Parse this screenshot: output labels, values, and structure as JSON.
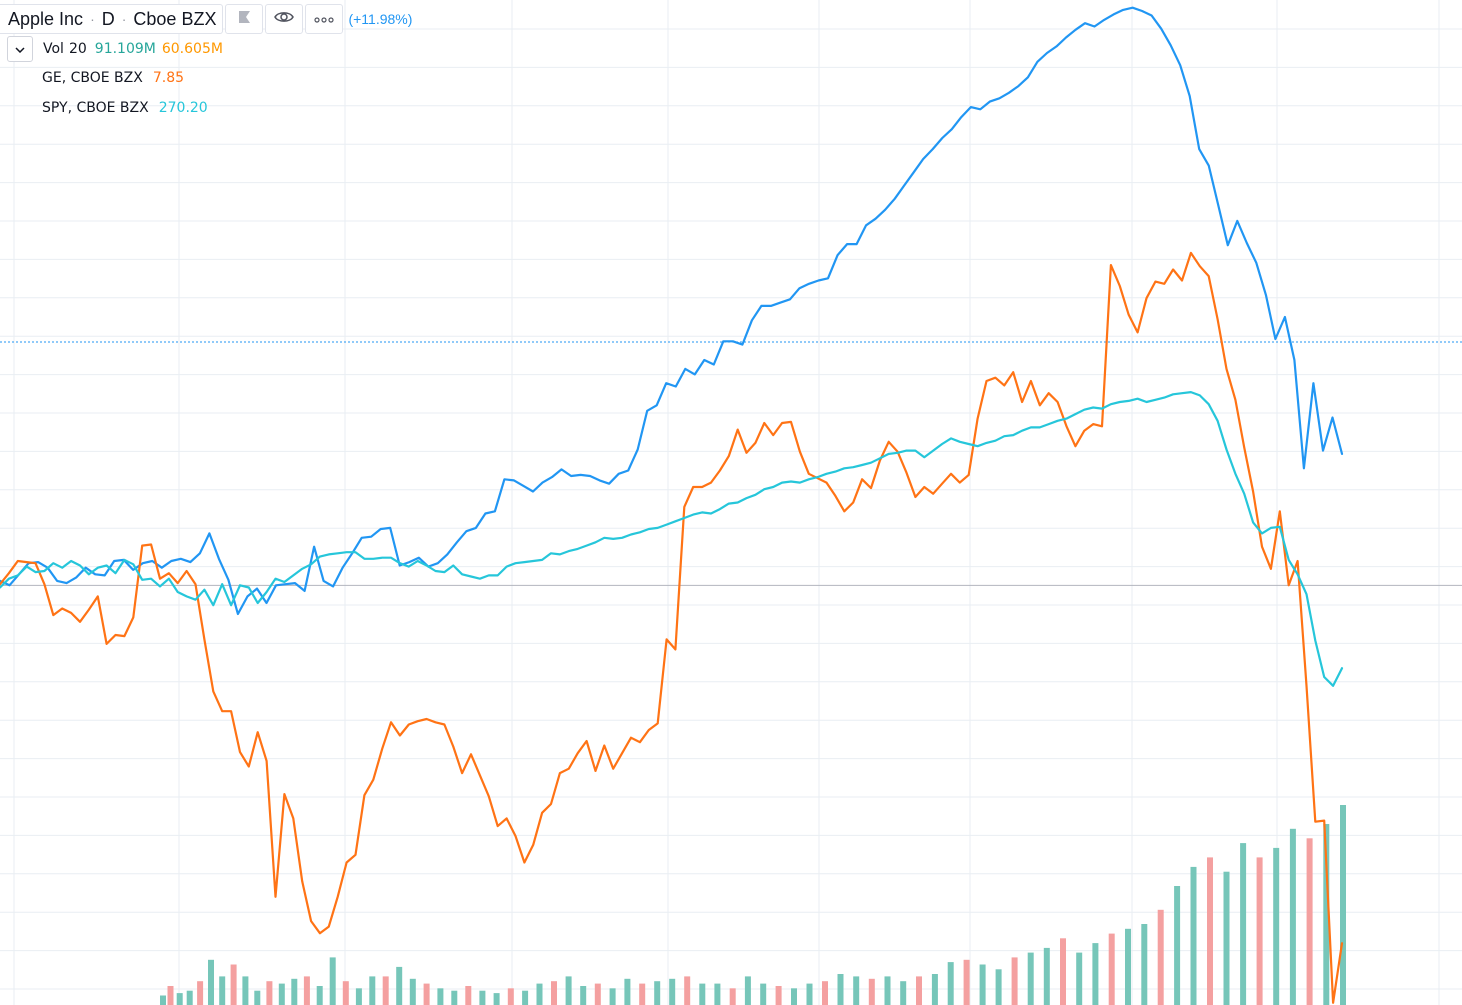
{
  "header": {
    "symbol": "Apple Inc",
    "interval": "D",
    "exchange": "Cboe BZX",
    "change": "(+11.98%)",
    "flag_icon": "flag-icon",
    "eye_icon": "eye-icon",
    "more_icon": "more-dots-icon"
  },
  "studies": {
    "volume": {
      "name": "Vol",
      "length": "20",
      "value1": "91.109M",
      "value2": "60.605M"
    },
    "compare": [
      {
        "name": "GE, CBOE BZX",
        "value": "7.85"
      },
      {
        "name": "SPY, CBOE BZX",
        "value": "270.20"
      }
    ]
  },
  "colors": {
    "aapl": "#2196f3",
    "ge": "#ff7315",
    "spy": "#26c6da",
    "vol_up": "#76c6b9",
    "vol_down": "#f4a0a0",
    "grid": "#e9eef3",
    "baseline": "#b2b5be",
    "price_line": "#2196f3",
    "vol_value1": "#26a69a",
    "vol_value2": "#ff9800",
    "ge_value": "#ff7315",
    "spy_value": "#26c6da"
  },
  "chart_data": {
    "type": "line",
    "y_unit": "percent change vs. start",
    "percent_range": [
      -38,
      53
    ],
    "baseline": 0,
    "current_change_percent": 11.98,
    "series": [
      {
        "name": "Apple Inc",
        "values": [
          0.4,
          0.0,
          1.0,
          2.0,
          2.1,
          1.6,
          0.4,
          0.2,
          0.7,
          1.6,
          1.0,
          0.9,
          2.2,
          2.3,
          1.4,
          2.0,
          2.2,
          1.6,
          2.2,
          2.4,
          2.1,
          2.9,
          4.7,
          2.4,
          0.5,
          -2.6,
          -1.0,
          -0.3,
          -1.6,
          0.0,
          0.1,
          0.2,
          -0.5,
          3.5,
          0.4,
          -0.1,
          1.6,
          2.9,
          4.3,
          4.4,
          5.1,
          5.2,
          1.8,
          2.1,
          2.5,
          1.7,
          2.0,
          2.8,
          3.9,
          4.9,
          5.2,
          6.5,
          6.7,
          9.6,
          9.5,
          9.0,
          8.5,
          9.3,
          9.8,
          10.5,
          9.9,
          10.0,
          9.9,
          9.5,
          9.2,
          10.1,
          10.4,
          12.3,
          15.8,
          16.3,
          18.3,
          18.0,
          19.6,
          19.1,
          20.4,
          20.0,
          22.1,
          22.1,
          21.8,
          24.0,
          25.3,
          25.3,
          25.6,
          25.9,
          26.9,
          27.3,
          27.6,
          27.8,
          29.9,
          30.9,
          30.9,
          32.6,
          33.2,
          34.0,
          35.0,
          36.2,
          37.4,
          38.6,
          39.5,
          40.5,
          41.3,
          42.4,
          43.3,
          43.1,
          43.8,
          44.1,
          44.6,
          45.2,
          46.0,
          47.4,
          48.2,
          48.8,
          49.6,
          50.3,
          50.9,
          50.6,
          51.2,
          51.7,
          52.1,
          52.3,
          52.0,
          51.6,
          50.4,
          48.9,
          47.1,
          44.3,
          39.5,
          38.0,
          34.4,
          30.8,
          33.0,
          31.0,
          29.2,
          26.3,
          22.3,
          24.3,
          20.4,
          10.6,
          18.3,
          12.2,
          15.2,
          11.9
        ],
        "color": "#2196f3"
      },
      {
        "name": "GE, CBOE BZX",
        "values": [
          0.1,
          1.1,
          2.2,
          2.1,
          2.0,
          0.1,
          -2.7,
          -2.1,
          -2.5,
          -3.3,
          -2.2,
          -1.0,
          -5.3,
          -4.5,
          -4.6,
          -2.9,
          3.6,
          3.7,
          0.6,
          1.1,
          0.2,
          1.3,
          0.1,
          -4.9,
          -9.6,
          -11.4,
          -11.4,
          -15.1,
          -16.4,
          -13.3,
          -15.9,
          -28.2,
          -18.9,
          -21.1,
          -26.8,
          -30.4,
          -31.5,
          -30.9,
          -28.2,
          -25.1,
          -24.4,
          -19.0,
          -17.6,
          -14.8,
          -12.4,
          -13.6,
          -12.6,
          -12.3,
          -12.1,
          -12.4,
          -12.6,
          -14.6,
          -17.0,
          -15.3,
          -17.2,
          -19.1,
          -21.8,
          -21.1,
          -22.7,
          -25.1,
          -23.5,
          -20.6,
          -19.8,
          -17.0,
          -16.6,
          -15.2,
          -14.1,
          -16.8,
          -14.5,
          -16.6,
          -15.2,
          -13.8,
          -14.2,
          -13.1,
          -12.5,
          -4.9,
          -5.8,
          7.1,
          8.9,
          8.9,
          9.3,
          10.4,
          11.7,
          14.1,
          12.0,
          12.9,
          14.7,
          13.6,
          14.7,
          14.8,
          12.1,
          10.1,
          9.7,
          9.3,
          8.1,
          6.7,
          7.5,
          9.6,
          8.8,
          11.3,
          13.0,
          12.1,
          10.2,
          8.0,
          8.9,
          8.3,
          9.2,
          10.1,
          9.3,
          10.0,
          15.1,
          18.5,
          18.8,
          18.1,
          19.3,
          16.6,
          18.5,
          16.3,
          17.4,
          16.6,
          14.4,
          12.6,
          14.0,
          14.6,
          14.4,
          29.0,
          27.1,
          24.5,
          22.9,
          26.0,
          27.5,
          27.3,
          28.6,
          27.6,
          30.1,
          28.9,
          28.0,
          24.1,
          19.6,
          16.8,
          12.5,
          8.5,
          3.5,
          1.5,
          6.7,
          0.0,
          2.2,
          -9.1,
          -21.4,
          -21.3,
          -37.8,
          -32.4
        ],
        "color": "#ff7315"
      },
      {
        "name": "SPY, CBOE BZX",
        "values": [
          -0.2,
          0.6,
          0.9,
          1.7,
          1.2,
          1.3,
          2.0,
          1.6,
          2.2,
          1.8,
          1.0,
          1.6,
          1.8,
          1.1,
          2.3,
          1.9,
          0.5,
          0.6,
          -0.1,
          0.6,
          -0.6,
          -1.0,
          -1.3,
          -0.4,
          -1.8,
          0.1,
          -1.8,
          0.0,
          -0.2,
          -1.6,
          -0.6,
          0.6,
          0.3,
          0.9,
          1.5,
          1.9,
          2.6,
          2.8,
          2.9,
          3.0,
          3.0,
          2.4,
          2.4,
          2.5,
          2.5,
          2.0,
          1.7,
          2.2,
          1.8,
          1.3,
          1.2,
          1.8,
          1.0,
          0.8,
          0.6,
          0.9,
          0.9,
          1.7,
          2.0,
          2.1,
          2.2,
          2.3,
          2.9,
          2.8,
          3.1,
          3.3,
          3.6,
          3.9,
          4.3,
          4.2,
          4.3,
          4.6,
          4.8,
          5.1,
          5.2,
          5.5,
          5.8,
          6.1,
          6.4,
          6.6,
          6.5,
          6.9,
          7.4,
          7.5,
          7.9,
          8.2,
          8.7,
          8.9,
          9.3,
          9.4,
          9.3,
          9.6,
          9.8,
          10.1,
          10.3,
          10.6,
          10.7,
          10.9,
          11.1,
          11.5,
          11.9,
          12.0,
          12.2,
          12.2,
          11.6,
          12.2,
          12.8,
          13.3,
          13.0,
          12.8,
          12.6,
          12.9,
          13.1,
          13.5,
          13.6,
          14.0,
          14.3,
          14.3,
          14.6,
          14.9,
          15.1,
          15.5,
          15.9,
          16.1,
          16.0,
          16.4,
          16.6,
          16.7,
          16.9,
          16.6,
          16.8,
          17.0,
          17.3,
          17.4,
          17.5,
          17.2,
          16.4,
          14.9,
          12.3,
          10.1,
          8.3,
          5.7,
          4.7,
          5.2,
          5.3,
          2.3,
          1.0,
          -0.8,
          -5.0,
          -8.3,
          -9.1,
          -7.5
        ],
        "color": "#26c6da"
      }
    ],
    "volume": {
      "name": "Vol 20",
      "values": [
        0.2,
        0.4,
        0.25,
        0.3,
        0.5,
        0.95,
        0.6,
        0.85,
        0.6,
        0.3,
        0.5,
        0.45,
        0.55,
        0.6,
        0.4,
        1.0,
        0.5,
        0.35,
        0.6,
        0.6,
        0.8,
        0.55,
        0.45,
        0.35,
        0.3,
        0.4,
        0.3,
        0.25,
        0.35,
        0.3,
        0.45,
        0.5,
        0.6,
        0.4,
        0.45,
        0.35,
        0.55,
        0.45,
        0.5,
        0.55,
        0.6,
        0.45,
        0.45,
        0.35,
        0.6,
        0.45,
        0.4,
        0.35,
        0.45,
        0.5,
        0.65,
        0.6,
        0.55,
        0.6,
        0.5,
        0.6,
        0.65,
        0.9,
        0.95,
        0.85,
        0.75,
        1.0,
        1.1,
        1.2,
        1.4,
        1.1,
        1.3,
        1.5,
        1.6,
        1.7,
        2.0,
        2.5,
        2.9,
        3.1,
        2.8,
        3.4,
        3.1,
        3.3,
        3.7,
        3.5,
        3.8,
        4.2
      ],
      "up_color": "#76c6b9",
      "down_color": "#f4a0a0"
    }
  }
}
